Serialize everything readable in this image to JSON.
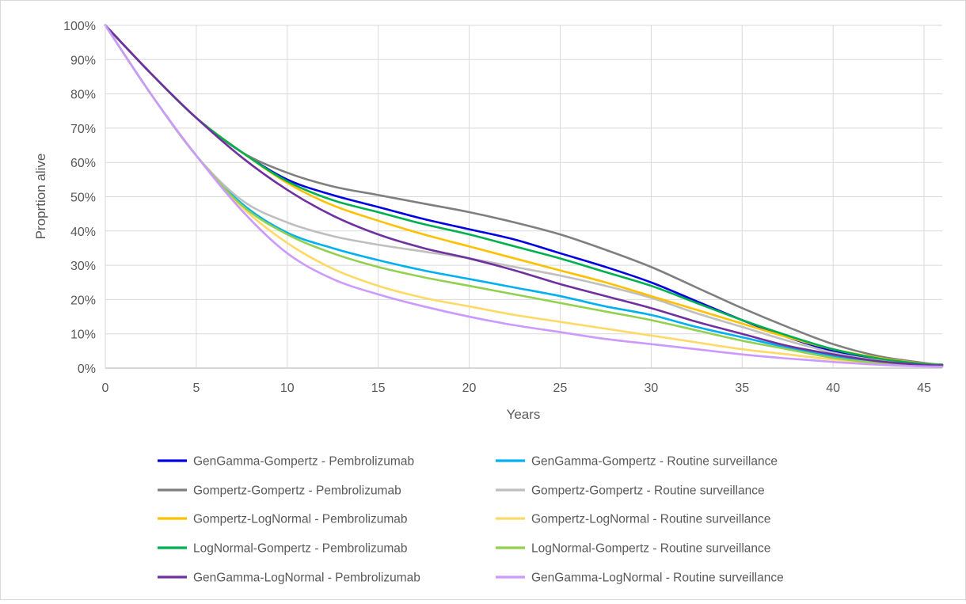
{
  "chart_data": {
    "type": "line",
    "xlabel": "Years",
    "ylabel": "Proprtion alive",
    "xlim": [
      0,
      46
    ],
    "ylim": [
      0,
      100
    ],
    "x_ticks": [
      0,
      5,
      10,
      15,
      20,
      25,
      30,
      35,
      40,
      45
    ],
    "y_ticks": [
      "0%",
      "10%",
      "20%",
      "30%",
      "40%",
      "50%",
      "60%",
      "70%",
      "80%",
      "90%",
      "100%"
    ],
    "grid": true,
    "legend_position": "bottom",
    "x": [
      0,
      2.5,
      5,
      7.5,
      10,
      12.5,
      15,
      17.5,
      20,
      22.5,
      25,
      27.5,
      30,
      32.5,
      35,
      37.5,
      40,
      42.5,
      45,
      46
    ],
    "series": [
      {
        "name": "GenGamma-Gompertz - Pembrolizumab",
        "color": "#0000E0",
        "values": [
          100,
          86,
          73,
          63,
          55,
          50.5,
          47,
          43.5,
          40.5,
          37.5,
          33.5,
          29.5,
          25,
          19.5,
          14,
          9,
          5,
          2.5,
          1.2,
          1
        ]
      },
      {
        "name": "GenGamma-Gompertz - Routine surveillance",
        "color": "#00B0F0",
        "values": [
          100,
          80,
          62,
          48,
          39.5,
          35,
          31.5,
          28.5,
          26,
          23.5,
          21,
          18,
          15.5,
          12,
          9,
          6,
          3.5,
          1.8,
          0.8,
          0.5
        ]
      },
      {
        "name": "Gompertz-Gompertz - Pembrolizumab",
        "color": "#7F7F7F",
        "values": [
          100,
          86,
          73,
          63,
          57,
          53,
          50.5,
          48,
          45.5,
          42.5,
          39,
          34.5,
          29.5,
          23.5,
          17.5,
          12,
          7,
          3.5,
          1.5,
          1
        ]
      },
      {
        "name": "Gompertz-Gompertz - Routine surveillance",
        "color": "#BFBFBF",
        "values": [
          100,
          80,
          62,
          49,
          42.5,
          38.5,
          36,
          34,
          32,
          29.5,
          27,
          24,
          20.5,
          16,
          12,
          8,
          4.5,
          2.2,
          1,
          0.6
        ]
      },
      {
        "name": "Gompertz-LogNormal - Pembrolizumab",
        "color": "#FFC000",
        "values": [
          100,
          86,
          73,
          63,
          54,
          47.5,
          43,
          39,
          35.5,
          32,
          28.5,
          25,
          21,
          17,
          13,
          9,
          5.5,
          3,
          1.3,
          1
        ]
      },
      {
        "name": "Gompertz-LogNormal - Routine surveillance",
        "color": "#FFD966",
        "values": [
          100,
          80,
          62,
          47,
          36.5,
          29,
          24,
          20.5,
          18,
          15.5,
          13.5,
          11.5,
          9.5,
          7.5,
          5.5,
          4,
          2.5,
          1.3,
          0.7,
          0.5
        ]
      },
      {
        "name": "LogNormal-Gompertz - Pembrolizumab",
        "color": "#00B050",
        "values": [
          100,
          86,
          73,
          63,
          54.5,
          49,
          45.5,
          42,
          39,
          35.5,
          32,
          28,
          24,
          19,
          14,
          9.5,
          5.5,
          2.8,
          1.2,
          1
        ]
      },
      {
        "name": "LogNormal-Gompertz - Routine surveillance",
        "color": "#92D050",
        "values": [
          100,
          80,
          62,
          47.5,
          39,
          33.5,
          29.5,
          26.5,
          24,
          21.5,
          19,
          16.5,
          14,
          11,
          8,
          5.5,
          3,
          1.5,
          0.7,
          0.5
        ]
      },
      {
        "name": "GenGamma-LogNormal - Pembrolizumab",
        "color": "#7030A0",
        "values": [
          100,
          86,
          73,
          61.5,
          52,
          44.5,
          39,
          35,
          32,
          28.5,
          24.5,
          21,
          17.5,
          13.5,
          10,
          6.5,
          4,
          2,
          0.9,
          0.8
        ]
      },
      {
        "name": "GenGamma-LogNormal - Routine surveillance",
        "color": "#CC99FF",
        "values": [
          100,
          80,
          62,
          46,
          33.5,
          26,
          21.5,
          18,
          15,
          12.5,
          10.5,
          8.5,
          7,
          5.5,
          4,
          2.8,
          1.8,
          1,
          0.5,
          0.4
        ]
      }
    ]
  }
}
